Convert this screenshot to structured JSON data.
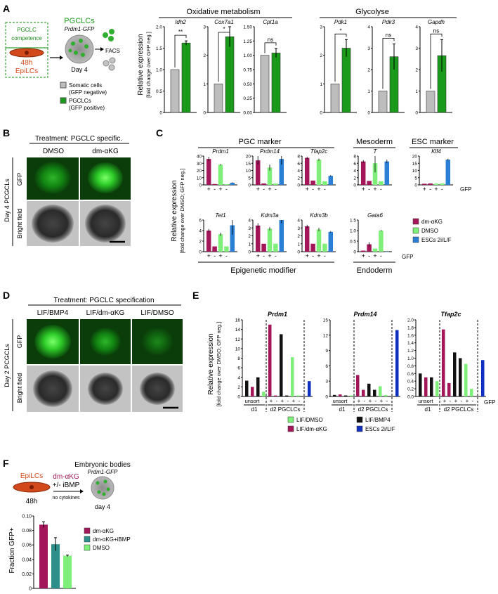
{
  "colors": {
    "grey": "#bdbdbd",
    "green": "#1a9a1a",
    "magenta": "#a3175a",
    "light_green": "#7ef07a",
    "blue": "#2a7fd4",
    "black": "#111111",
    "dark_blue": "#1030c0",
    "teal": "#2f8f8a",
    "orange": "#d2491b",
    "dashed_green": "#3aa23a"
  },
  "panels": {
    "A": {
      "letter": "A",
      "schematic": {
        "competence": "PGCLC\ncompetence",
        "time": "48h",
        "cell": "EpiLCs",
        "pgclcs": "PGCLCs",
        "reporter": "Prdm1-GFP",
        "day": "Day 4",
        "facs": "FACS",
        "legend": [
          {
            "label": "Somatic cells\n(GFP negative)",
            "color": "grey"
          },
          {
            "label": "PGCLCs\n(GFP positive)",
            "color": "green"
          }
        ]
      },
      "ylabel": "Relative expression",
      "ylabel2": "[fold change over GFP neg.]",
      "groups": [
        {
          "title": "Oxidative metabolism",
          "genes": [
            "Idh2",
            "Cox7a1",
            "Cpt1a"
          ]
        },
        {
          "title": "Glycolyse",
          "genes": [
            "Pdk1",
            "Pdk3",
            "Gapdh"
          ]
        }
      ],
      "ticks": {
        "Idh2": [
          "2.0",
          "1.5",
          "1.0",
          "0.5",
          "0"
        ],
        "Cox7a1": [
          "3",
          "2",
          "1",
          "0"
        ],
        "Cpt1a": [
          "1.50",
          "1.25",
          "1.00",
          "0.75",
          "0.50",
          "0.25",
          "0.00"
        ],
        "Pdk1": [
          "3",
          "2",
          "1",
          "0"
        ],
        "Pdk3": [
          "4",
          "3",
          "2",
          "1",
          "0"
        ],
        "Gapdh": [
          "4",
          "3",
          "2",
          "1",
          "0"
        ]
      },
      "signif": {
        "Idh2": "**",
        "Cox7a1": "*",
        "Cpt1a": "ns",
        "Pdk1": "*",
        "Pdk3": "ns",
        "Gapdh": "ns"
      }
    },
    "B": {
      "letter": "B",
      "title": "Treatment: PGCLC specific.",
      "cols": [
        "DMSO",
        "dm-αKG"
      ],
      "row_group": "Day 4 PCGCLs",
      "rows": [
        "GFP",
        "Bright field"
      ]
    },
    "C": {
      "letter": "C",
      "groups": [
        "PGC marker",
        "Mesoderm",
        "ESC marker"
      ],
      "bottom_groups": [
        "Epigenetic modifier",
        "Endoderm"
      ],
      "ylabel": "Relative expression",
      "ylabel2": "[fold change over DMSO; GFP neg.]",
      "genes_top": [
        "Prdm1",
        "Prdm14",
        "Tfap2c",
        "T",
        "Klf4"
      ],
      "genes_bottom": [
        "Tet1",
        "Kdm3a",
        "Kdm3b",
        "Gata6"
      ],
      "ticks": {
        "Prdm1": [
          "40",
          "30",
          "20",
          "10",
          "0"
        ],
        "Prdm14": [
          "20",
          "15",
          "10",
          "5",
          "0"
        ],
        "Tfap2c": [
          "8",
          "6",
          "4",
          "2",
          "0"
        ],
        "T": [
          "8",
          "6",
          "4",
          "2",
          "0"
        ],
        "Klf4": [
          "20",
          "15",
          "10",
          "5",
          "0"
        ],
        "Tet1": [
          "6",
          "4",
          "2",
          "0"
        ],
        "Kdm3a": [
          "4",
          "3",
          "2",
          "1",
          "0"
        ],
        "Kdm3b": [
          "4",
          "3",
          "2",
          "1",
          "0"
        ],
        "Gata6": [
          "1.5",
          "1.0",
          "0.5",
          "0"
        ]
      },
      "gfp_signs": [
        "+",
        "-",
        "+",
        "-"
      ],
      "gfp_label": "GFP",
      "legend": [
        {
          "label": "dm-αKG",
          "color": "magenta"
        },
        {
          "label": "DMSO",
          "color": "light_green"
        },
        {
          "label": "ESCs 2i/L/F",
          "color": "blue"
        }
      ]
    },
    "D": {
      "letter": "D",
      "title": "Treatment: PGCLC specification",
      "cols": [
        "LIF/BMP4",
        "LIF/dm-αKG",
        "LIF/DMSO"
      ],
      "row_group": "Day 2 PCGCLs",
      "rows": [
        "GFP",
        "Bright field"
      ]
    },
    "E": {
      "letter": "E",
      "ylabel": "Relative expression",
      "ylabel2": "[fold change over DMSO; GFP neg.]",
      "genes": [
        "Prdm1",
        "Prdm14",
        "Tfap2c"
      ],
      "ticks": {
        "Prdm1": [
          "16",
          "14",
          "12",
          "10",
          "8",
          "6",
          "4",
          "2",
          "0"
        ],
        "Prdm14": [
          "15",
          "12",
          "9",
          "6",
          "3",
          "0"
        ],
        "Tfap2c": [
          "2.0",
          "1.8",
          "1.6",
          "1.4",
          "1.2",
          "1.0",
          "0.8",
          "0.6",
          "0.4",
          "0.2",
          "0.0"
        ]
      },
      "xlab_unsort": "unsort",
      "xlab_d1": "d1",
      "xlab_d2": "d2 PGCLCs",
      "gfp_label": "GFP",
      "legend": [
        {
          "label": "LIF/DMSO",
          "color": "light_green"
        },
        {
          "label": "LIF/BMP4",
          "color": "black"
        },
        {
          "label": "LIF/dm-αKG",
          "color": "magenta"
        },
        {
          "label": "ESCs 2i/LIF",
          "color": "dark_blue"
        }
      ]
    },
    "F": {
      "letter": "F",
      "schematic": {
        "cell": "EpiLCs",
        "time": "48h",
        "treat1": "dm-αKG",
        "treat2": "+/- iBMP",
        "note": "no cytokines",
        "eb": "Embryonic bodies",
        "reporter": "Prdm1-GFP",
        "day": "day 4"
      },
      "ylabel": "Fraction GFP+",
      "ticks": [
        "0.10",
        "0.08",
        "0.06",
        "0.04",
        "0.02",
        "0"
      ],
      "legend": [
        {
          "label": "dm-αKG",
          "color": "magenta"
        },
        {
          "label": "dm-αKG+iBMP",
          "color": "teal"
        },
        {
          "label": "DMSO",
          "color": "light_green"
        }
      ]
    }
  },
  "chart_data": [
    {
      "type": "bar",
      "panel": "A",
      "gene": "Idh2",
      "categories": [
        "GFP negative",
        "GFP positive"
      ],
      "values": [
        1.0,
        1.62
      ],
      "errors": [
        0,
        0.05
      ],
      "ylim": [
        0,
        2.0
      ]
    },
    {
      "type": "bar",
      "panel": "A",
      "gene": "Cox7a1",
      "categories": [
        "GFP negative",
        "GFP positive"
      ],
      "values": [
        1.0,
        2.65
      ],
      "errors": [
        0,
        0.35
      ],
      "ylim": [
        0,
        3.3
      ]
    },
    {
      "type": "bar",
      "panel": "A",
      "gene": "Cpt1a",
      "categories": [
        "GFP negative",
        "GFP positive"
      ],
      "values": [
        1.0,
        1.04
      ],
      "errors": [
        0,
        0.08
      ],
      "ylim": [
        0,
        1.5
      ]
    },
    {
      "type": "bar",
      "panel": "A",
      "gene": "Pdk1",
      "categories": [
        "GFP negative",
        "GFP positive"
      ],
      "values": [
        1.0,
        2.25
      ],
      "errors": [
        0,
        0.3
      ],
      "ylim": [
        0,
        3.3
      ]
    },
    {
      "type": "bar",
      "panel": "A",
      "gene": "Pdk3",
      "categories": [
        "GFP negative",
        "GFP positive"
      ],
      "values": [
        1.0,
        2.6
      ],
      "errors": [
        0,
        0.6
      ],
      "ylim": [
        0,
        4.0
      ]
    },
    {
      "type": "bar",
      "panel": "A",
      "gene": "Gapdh",
      "categories": [
        "GFP negative",
        "GFP positive"
      ],
      "values": [
        1.0,
        2.65
      ],
      "errors": [
        0,
        0.75
      ],
      "ylim": [
        0,
        4.0
      ]
    },
    {
      "type": "bar",
      "panel": "C",
      "gene": "Prdm1",
      "categories": [
        "dm-αKG +",
        "dm-αKG -",
        "DMSO +",
        "DMSO -",
        "ESCs 2i/L/F"
      ],
      "values": [
        36,
        1.2,
        28,
        1.0,
        3
      ],
      "errors": [
        3,
        0,
        1,
        0,
        0.5
      ],
      "ylim": [
        0,
        40
      ]
    },
    {
      "type": "bar",
      "panel": "C",
      "gene": "Prdm14",
      "categories": [
        "dm-αKG +",
        "dm-αKG -",
        "DMSO +",
        "DMSO -",
        "ESCs 2i/L/F"
      ],
      "values": [
        17,
        1.0,
        12,
        1.0,
        18
      ],
      "errors": [
        3,
        0,
        2,
        0,
        4
      ],
      "ylim": [
        0,
        20
      ]
    },
    {
      "type": "bar",
      "panel": "C",
      "gene": "Tfap2c",
      "categories": [
        "dm-αKG +",
        "dm-αKG -",
        "DMSO +",
        "DMSO -",
        "ESCs 2i/L/F"
      ],
      "values": [
        7.5,
        1.2,
        7.0,
        1.0,
        2.5
      ],
      "errors": [
        0.3,
        0,
        0.3,
        0,
        0.2
      ],
      "ylim": [
        0,
        8
      ]
    },
    {
      "type": "bar",
      "panel": "C",
      "gene": "T",
      "categories": [
        "dm-αKG +",
        "dm-αKG -",
        "DMSO +",
        "DMSO -",
        "ESCs 2i/L/F"
      ],
      "values": [
        6.5,
        1.1,
        6.0,
        1.0,
        6.5
      ],
      "errors": [
        0.4,
        0,
        2.5,
        0,
        0.5
      ],
      "ylim": [
        0,
        8
      ]
    },
    {
      "type": "bar",
      "panel": "C",
      "gene": "Klf4",
      "categories": [
        "dm-αKG +",
        "dm-αKG -",
        "DMSO +",
        "DMSO -",
        "ESCs 2i/L/F"
      ],
      "values": [
        0.8,
        1.0,
        0.9,
        1.0,
        17.5
      ],
      "errors": [
        0,
        0,
        0,
        0,
        0.6
      ],
      "ylim": [
        0,
        20
      ]
    },
    {
      "type": "bar",
      "panel": "C",
      "gene": "Tet1",
      "categories": [
        "dm-αKG +",
        "dm-αKG -",
        "DMSO +",
        "DMSO -",
        "ESCs 2i/L/F"
      ],
      "values": [
        4.0,
        1.0,
        3.3,
        1.0,
        5.0
      ],
      "errors": [
        0.3,
        0,
        0.3,
        0,
        1.8
      ],
      "ylim": [
        0,
        7
      ]
    },
    {
      "type": "bar",
      "panel": "C",
      "gene": "Kdm3a",
      "categories": [
        "dm-αKG +",
        "dm-αKG -",
        "DMSO +",
        "DMSO -",
        "ESCs 2i/L/F"
      ],
      "values": [
        3.3,
        1.0,
        2.9,
        1.0,
        4.0
      ],
      "errors": [
        0.3,
        0,
        0.2,
        0,
        0.4
      ],
      "ylim": [
        0,
        4.3
      ]
    },
    {
      "type": "bar",
      "panel": "C",
      "gene": "Kdm3b",
      "categories": [
        "dm-αKG +",
        "dm-αKG -",
        "DMSO +",
        "DMSO -",
        "ESCs 2i/L/F"
      ],
      "values": [
        3.2,
        1.0,
        2.8,
        1.0,
        2.5
      ],
      "errors": [
        0.2,
        0,
        0.2,
        0,
        0.1
      ],
      "ylim": [
        0,
        4.3
      ]
    },
    {
      "type": "bar",
      "panel": "C",
      "gene": "Gata6",
      "categories": [
        "dm-αKG +",
        "dm-αKG -",
        "DMSO +",
        "DMSO -",
        "ESCs 2i/L/F"
      ],
      "values": [
        0.05,
        0.35,
        0.15,
        1.0,
        0
      ],
      "errors": [
        0,
        0.1,
        0,
        0.03,
        0
      ],
      "ylim": [
        0,
        1.5
      ]
    },
    {
      "type": "bar",
      "panel": "E",
      "gene": "Prdm1",
      "categories": [
        "d1 unsort BMP4",
        "d1 unsort dm-αKG",
        "d1 unsort DMSO",
        "d1 unsort ESC",
        "d2 dm-αKG +",
        "d2 dm-αKG -",
        "d2 BMP4 +",
        "d2 BMP4 -",
        "d2 DMSO +",
        "d2 DMSO -",
        "ESCs 2i/LIF"
      ],
      "values": [
        3.3,
        2.0,
        4.0,
        1.0,
        15.0,
        0.2,
        13.0,
        0.2,
        8.2,
        0.2,
        3.2
      ],
      "ylim": [
        0,
        16
      ]
    },
    {
      "type": "bar",
      "panel": "E",
      "gene": "Prdm14",
      "categories": [
        "d1 unsort BMP4",
        "d1 unsort dm-αKG",
        "d1 unsort DMSO",
        "d1 unsort ESC",
        "d2 dm-αKG +",
        "d2 dm-αKG -",
        "d2 BMP4 +",
        "d2 BMP4 -",
        "d2 DMSO +",
        "d2 DMSO -",
        "ESCs 2i/LIF"
      ],
      "values": [
        0.3,
        0.4,
        0.2,
        0.2,
        4.2,
        1.3,
        2.5,
        1.3,
        2.0,
        0.3,
        13.0
      ],
      "ylim": [
        0,
        15
      ]
    },
    {
      "type": "bar",
      "panel": "E",
      "gene": "Tfap2c",
      "categories": [
        "d1 unsort BMP4",
        "d1 unsort dm-αKG",
        "d1 unsort DMSO",
        "d1 unsort ESC",
        "d2 dm-αKG +",
        "d2 dm-αKG -",
        "d2 BMP4 +",
        "d2 BMP4 -",
        "d2 DMSO +",
        "d2 DMSO -",
        "ESCs 2i/LIF"
      ],
      "values": [
        0.6,
        0.5,
        0.5,
        0.4,
        1.75,
        0.35,
        1.15,
        1.0,
        0.85,
        0.2,
        0.95
      ],
      "ylim": [
        0,
        2.0
      ]
    },
    {
      "type": "bar",
      "panel": "F",
      "categories": [
        "dm-αKG",
        "dm-αKG+iBMP",
        "DMSO"
      ],
      "values": [
        0.088,
        0.061,
        0.045
      ],
      "errors": [
        0.004,
        0.009,
        0.001
      ],
      "ylabel": "Fraction GFP+",
      "ylim": [
        0,
        0.1
      ]
    }
  ]
}
